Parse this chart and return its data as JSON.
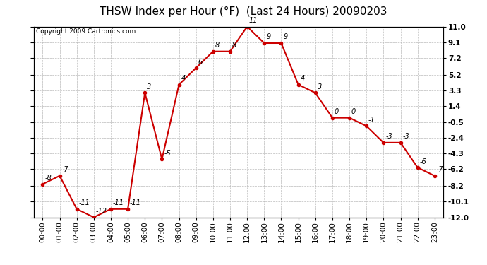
{
  "title": "THSW Index per Hour (°F)  (Last 24 Hours) 20090203",
  "copyright": "Copyright 2009 Cartronics.com",
  "hours": [
    "00:00",
    "01:00",
    "02:00",
    "03:00",
    "04:00",
    "05:00",
    "06:00",
    "07:00",
    "08:00",
    "09:00",
    "10:00",
    "11:00",
    "12:00",
    "13:00",
    "14:00",
    "15:00",
    "16:00",
    "17:00",
    "18:00",
    "19:00",
    "20:00",
    "21:00",
    "22:00",
    "23:00"
  ],
  "values": [
    -8,
    -7,
    -11,
    -12,
    -11,
    -11,
    3,
    -5,
    4,
    6,
    8,
    8,
    11,
    9,
    9,
    4,
    3,
    0,
    0,
    -1,
    -3,
    -3,
    -6,
    -7
  ],
  "line_color": "#cc0000",
  "marker_color": "#cc0000",
  "background_color": "#ffffff",
  "grid_color": "#bbbbbb",
  "ylim": [
    -12.0,
    11.0
  ],
  "yticks": [
    -12.0,
    -10.1,
    -8.2,
    -6.2,
    -4.3,
    -2.4,
    -0.5,
    1.4,
    3.3,
    5.2,
    7.2,
    9.1,
    11.0
  ],
  "title_fontsize": 11,
  "copyright_fontsize": 6.5,
  "tick_fontsize": 7.5,
  "annot_fontsize": 7
}
